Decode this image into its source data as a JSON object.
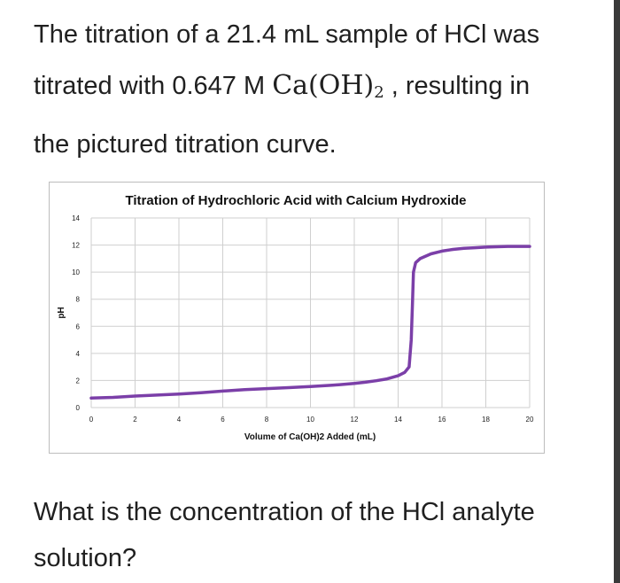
{
  "question": {
    "line1": "The titration of a 21.4 mL sample of HCl was",
    "line2_pre": "titrated with 0.647 M ",
    "formula_main": "Ca(OH)",
    "formula_sub": "2",
    "line2_post": " , resulting in",
    "line3": "the pictured titration curve.",
    "ask_line1": "What is the concentration of the HCl analyte",
    "ask_line2": "solution?"
  },
  "chart_data": {
    "type": "line",
    "title": "Titration of Hydrochloric Acid with Calcium Hydroxide",
    "xlabel": "Volume of Ca(OH)2 Added (mL)",
    "ylabel": "pH",
    "xlim": [
      0,
      20
    ],
    "ylim": [
      0,
      14
    ],
    "x_ticks": [
      0,
      2,
      4,
      6,
      8,
      10,
      12,
      14,
      16,
      18,
      20
    ],
    "y_ticks": [
      0,
      2,
      4,
      6,
      8,
      10,
      12,
      14
    ],
    "grid": true,
    "legend": "none",
    "series": [
      {
        "color": "#7b3fa8",
        "x": [
          0,
          1,
          2,
          3,
          4,
          5,
          6,
          7,
          8,
          9,
          10,
          11,
          12,
          12.5,
          13,
          13.5,
          14,
          14.3,
          14.5,
          14.6,
          14.65,
          14.7,
          14.8,
          15,
          15.5,
          16,
          16.5,
          17,
          17.5,
          18,
          19,
          20
        ],
        "y": [
          0.7,
          0.75,
          0.85,
          0.92,
          1.0,
          1.1,
          1.22,
          1.32,
          1.4,
          1.47,
          1.55,
          1.65,
          1.78,
          1.87,
          1.98,
          2.12,
          2.35,
          2.6,
          3.0,
          5.0,
          7.5,
          10.0,
          10.7,
          11.0,
          11.35,
          11.55,
          11.68,
          11.76,
          11.8,
          11.85,
          11.9,
          11.9
        ]
      }
    ]
  }
}
